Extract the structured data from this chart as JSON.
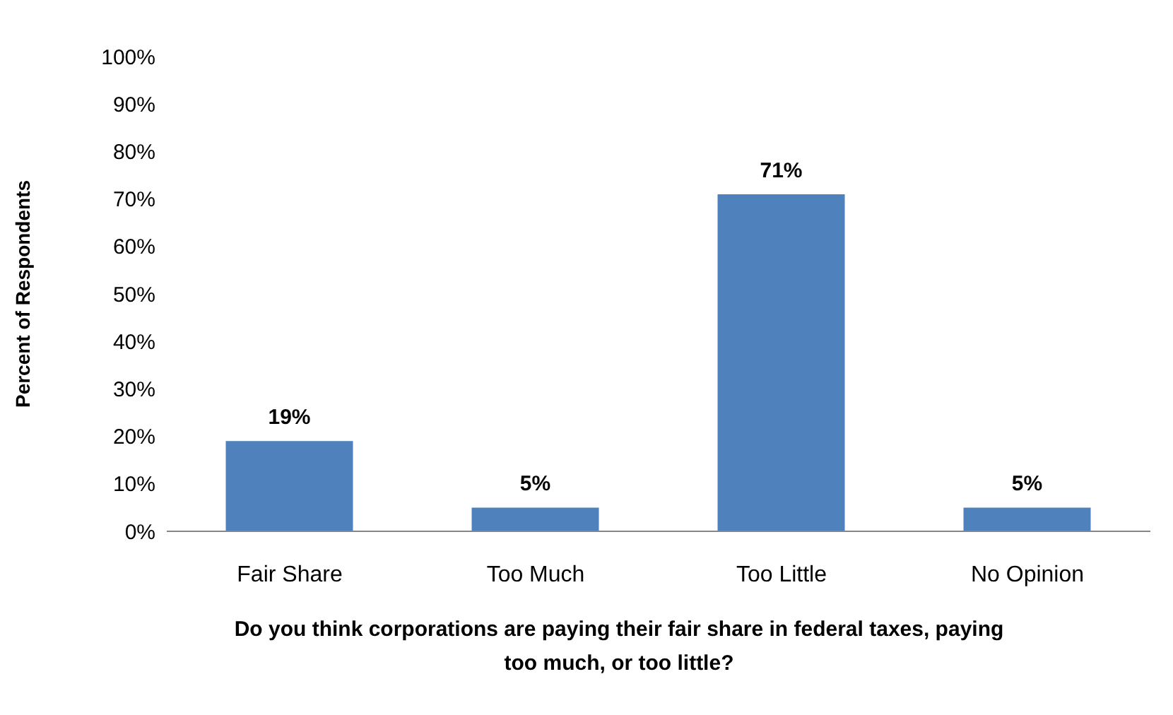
{
  "chart_data": {
    "type": "bar",
    "ylabel": "Percent of Respondents",
    "xlabel": "Do you think corporations are paying their fair share in federal taxes, paying too much, or too little?",
    "categories": [
      "Fair Share",
      "Too Much",
      "Too Little",
      "No Opinion"
    ],
    "values": [
      19,
      5,
      71,
      5
    ],
    "value_labels": [
      "19%",
      "5%",
      "71%",
      "5%"
    ],
    "color": "#4f81bd",
    "ylim": [
      0,
      100
    ],
    "yticks": [
      {
        "value": 0,
        "label": "0%"
      },
      {
        "value": 10,
        "label": "10%"
      },
      {
        "value": 20,
        "label": "20%"
      },
      {
        "value": 30,
        "label": "30%"
      },
      {
        "value": 40,
        "label": "40%"
      },
      {
        "value": 50,
        "label": "50%"
      },
      {
        "value": 60,
        "label": "60%"
      },
      {
        "value": 70,
        "label": "70%"
      },
      {
        "value": 80,
        "label": "80%"
      },
      {
        "value": 90,
        "label": "90%"
      },
      {
        "value": 100,
        "label": "100%"
      }
    ],
    "grid": false,
    "legend": false
  }
}
